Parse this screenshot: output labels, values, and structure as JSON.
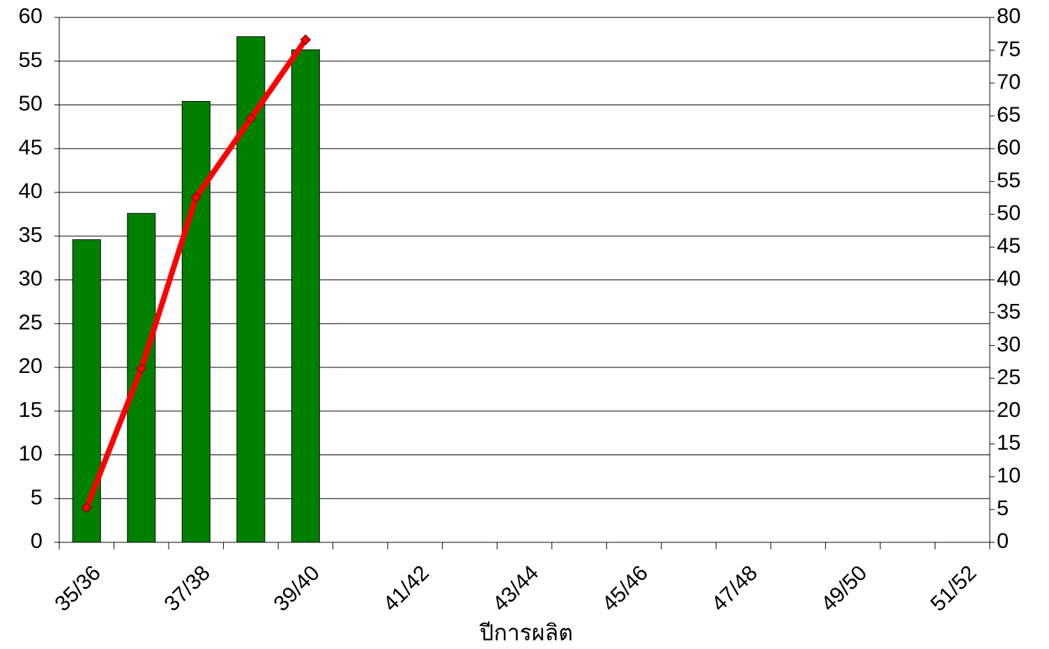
{
  "chart_data": {
    "type": "bar",
    "x_label": "ปีการผลิต",
    "categories": [
      "35/36",
      null,
      "37/38",
      null,
      "39/40",
      null,
      "41/42",
      null,
      "43/44",
      null,
      "45/46",
      null,
      "47/48",
      null,
      "49/50",
      null,
      "51/52"
    ],
    "series": [
      {
        "type": "bar",
        "color": "#008000",
        "values": [
          34.6,
          37.6,
          50.4,
          57.8,
          56.3,
          null,
          null,
          null,
          null,
          null,
          null,
          null,
          null,
          null,
          null,
          null,
          null
        ]
      },
      {
        "type": "line",
        "axis": "y2",
        "color": "#ff0000",
        "values": [
          5.3,
          26.5,
          52.6,
          64.6,
          76.6,
          null,
          null,
          null,
          null,
          null,
          null,
          null,
          null,
          null,
          null,
          null,
          null
        ]
      }
    ],
    "ylim": [
      0,
      60
    ],
    "yticks": [
      0,
      5,
      10,
      15,
      20,
      25,
      30,
      35,
      40,
      45,
      50,
      55,
      60
    ],
    "y2lim": [
      0,
      80
    ],
    "y2ticks": [
      0,
      5,
      10,
      15,
      20,
      25,
      30,
      35,
      40,
      45,
      50,
      55,
      60,
      65,
      70,
      75,
      80
    ],
    "grid": true
  }
}
